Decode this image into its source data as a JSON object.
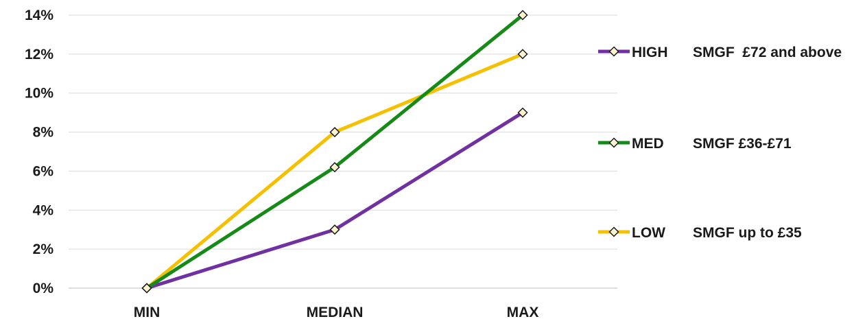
{
  "chart_data": {
    "type": "line",
    "categories": [
      "MIN",
      "MEDIAN",
      "MAX"
    ],
    "ylim": [
      0,
      14
    ],
    "y_ticks": [
      0,
      2,
      4,
      6,
      8,
      10,
      12,
      14
    ],
    "y_tick_labels": [
      "0%",
      "2%",
      "4%",
      "6%",
      "8%",
      "10%",
      "12%",
      "14%"
    ],
    "grid": true,
    "legend_position": "right",
    "series": [
      {
        "name": "HIGH",
        "description": "SMGF  £72 and above",
        "color": "#7030a0",
        "values": [
          0,
          3,
          9
        ]
      },
      {
        "name": "MED",
        "description": "SMGF £36-£71",
        "color": "#168a16",
        "values": [
          0,
          6.2,
          14
        ]
      },
      {
        "name": "LOW",
        "description": "SMGF up to £35",
        "color": "#f5c000",
        "values": [
          0,
          8,
          12
        ]
      }
    ],
    "marker": "diamond",
    "marker_fill": "#fbf3d0"
  }
}
